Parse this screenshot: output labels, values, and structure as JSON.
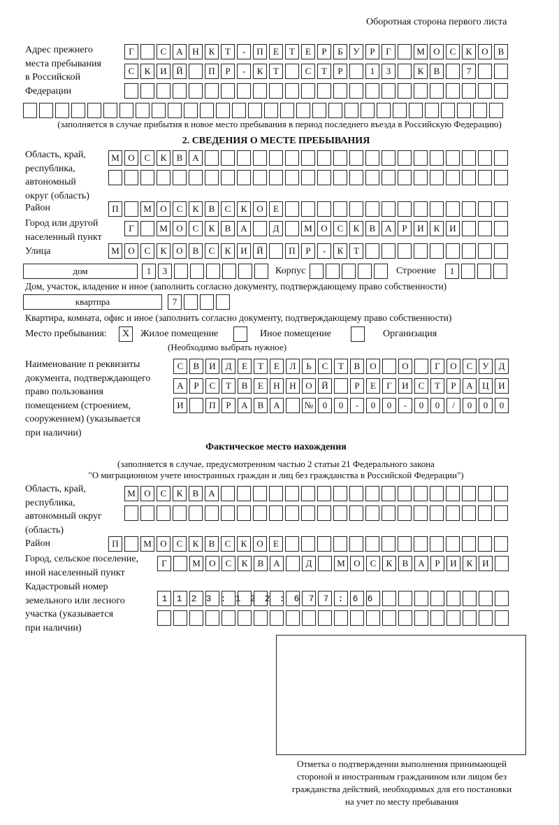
{
  "header": "Оборотная сторона первого листа",
  "prev_address": {
    "label": "Адрес прежнего\nместа пребывания\nв Российской\nФедерации",
    "rows": [
      "Г САНКТ-ПЕТЕРБУРГ МОСКОВ",
      "СКИЙ ПР-КТ СТР 13 КВ 7",
      "",
      ""
    ],
    "note": "(заполняется в случае прибытия в новое место пребывания в период последнего въезда в Российскую Федерацию)"
  },
  "section2": {
    "title": "2. СВЕДЕНИЯ О МЕСТЕ ПРЕБЫВАНИЯ",
    "region_label": "Область, край,\nреспублика,\nавтономный\nокруг (область)",
    "region": [
      "МОСКВА",
      ""
    ],
    "district_label": "Район",
    "district": "П МОСКВСКОЕ",
    "city_label": "Город или другой\nнаселенный пункт",
    "city": "Г МОСКВА Д МОСКВАРИКИ",
    "street_label": "Улица",
    "street": "МОСКОВСКИЙ ПР-КТ",
    "house_type": "дом",
    "house": "13",
    "korpus_label": "Корпус",
    "korpus": "",
    "building_label": "Строение",
    "building": "1",
    "house_note": "Дом, участок, владение и иное (заполнить согласно документу, подтверждающему право собственности)",
    "apt_type": "квартпра",
    "apt": "7",
    "apt_note": "Квартира, комната, офис и иное (заполнить согласно документу, подтверждающему право собственности)",
    "stay_label": "Место пребывания:",
    "stay_options": [
      {
        "label": "Жилое помещение",
        "mark": "X"
      },
      {
        "label": "Иное помещение",
        "mark": ""
      },
      {
        "label": "Организация",
        "mark": ""
      }
    ],
    "stay_note": "(Необходимо выбрать нужное)",
    "doc_label": "Наименование п реквизиты\nдокумента, подтверждающего\nправо пользования\nпомещением (строением,\nсооружением) (указывается\nпри наличии)",
    "doc": [
      "СВИДЕТЕЛЬСТВО О ГОСУД",
      "АРСТВЕННОЙ РЕГИСТРАЦИ",
      "И ПРАВА №00-00-00/000"
    ]
  },
  "actual": {
    "title": "Фактическое место нахождения",
    "note1": "(заполняется в случае, предусмотренном частью 2 статьи 21 Федерального закона",
    "note2": "\"О миграционном учете иностранных граждан и лиц без гражданства в Российской Федерации\")",
    "region_label": "Область, край,\nреспублика,\nавтономный округ\n(область)",
    "region": [
      "МОСКВА",
      ""
    ],
    "district_label": "Район",
    "district": "П МОСКВСКОЕ",
    "city_label": "Город, сельское поселение,\nиной населенный пункт",
    "city": "Г МОСКВА Д МОСКВАРИКИ",
    "cadastre_label": "Кадастровый номер\nземельного или лесного\nучастка (указывается\nпри наличии)",
    "cadastre": [
      "1123:122:677:66",
      ""
    ]
  },
  "stamp_caption": "Отметка о подтверждении выполнения принимающей\nстороной и иностранным гражданином или лицом без\nгражданства действий, необходимых для его постановки\nна учет по месту пребывания"
}
